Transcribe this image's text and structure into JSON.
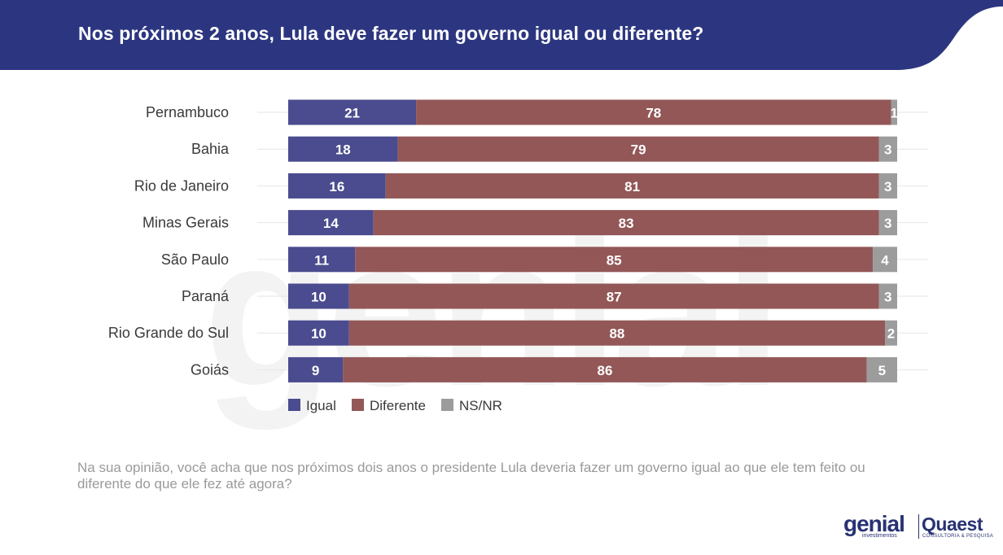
{
  "header": {
    "title": "Nos próximos 2 anos, Lula deve fazer um governo igual ou diferente?"
  },
  "colors": {
    "header_bg": "#2c3680",
    "igual": "#4b4b8f",
    "diferente": "#935757",
    "nsnr": "#9c9c9c"
  },
  "chart_data": {
    "type": "bar",
    "orientation": "horizontal",
    "stacked": true,
    "categories": [
      "Pernambuco",
      "Bahia",
      "Rio de Janeiro",
      "Minas Gerais",
      "São Paulo",
      "Paraná",
      "Rio Grande do Sul",
      "Goiás"
    ],
    "series": [
      {
        "name": "Igual",
        "values": [
          21,
          18,
          16,
          14,
          11,
          10,
          10,
          9
        ]
      },
      {
        "name": "Diferente",
        "values": [
          78,
          79,
          81,
          83,
          85,
          87,
          88,
          86
        ]
      },
      {
        "name": "NS/NR",
        "values": [
          1,
          3,
          3,
          3,
          4,
          3,
          2,
          5
        ]
      }
    ],
    "xlim": [
      0,
      100
    ],
    "legend_position": "bottom",
    "grid": true
  },
  "footnote": "Na sua opinião, você acha que nos próximos dois anos o presidente Lula deveria fazer um governo igual ao que ele tem feito ou diferente do que ele fez até agora?",
  "logos": {
    "genial": "genial",
    "genial_sub": "investimentos",
    "quaest": "Quaest",
    "quaest_sub": "CONSULTORIA & PESQUISA"
  }
}
